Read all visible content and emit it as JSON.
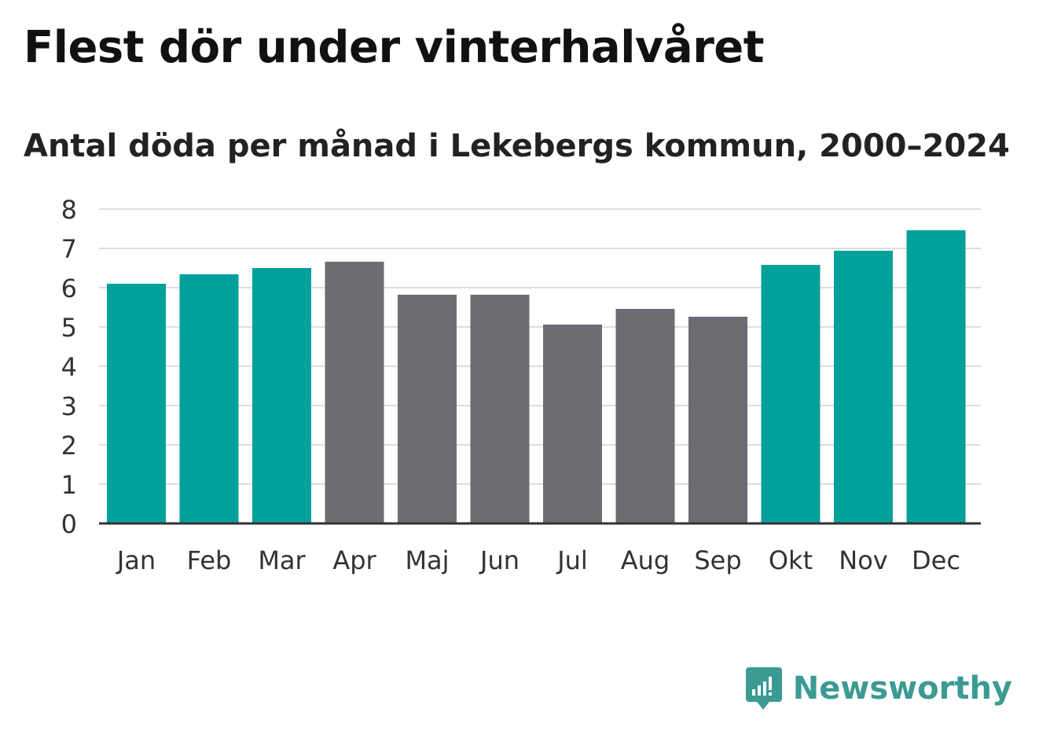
{
  "title": "Flest dör under vinterhalvåret",
  "subtitle": "Antal döda per månad i Lekebergs kommun, 2000–2024",
  "brand": {
    "name": "Newsworthy",
    "icon": "newsworthy-logo-icon",
    "color": "#3b9b93"
  },
  "colors": {
    "highlight": "#00a19a",
    "muted": "#6d6c72",
    "grid": "#dddddd",
    "axis": "#333333"
  },
  "chart_data": {
    "type": "bar",
    "title": "Flest dör under vinterhalvåret",
    "subtitle": "Antal döda per månad i Lekebergs kommun, 2000–2024",
    "xlabel": "",
    "ylabel": "",
    "ylim": [
      0,
      8
    ],
    "yticks": [
      0,
      1,
      2,
      3,
      4,
      5,
      6,
      7,
      8
    ],
    "grid": true,
    "categories": [
      "Jan",
      "Feb",
      "Mar",
      "Apr",
      "Maj",
      "Jun",
      "Jul",
      "Aug",
      "Sep",
      "Okt",
      "Nov",
      "Dec"
    ],
    "values": [
      6.1,
      6.34,
      6.5,
      6.66,
      5.82,
      5.82,
      5.06,
      5.46,
      5.26,
      6.58,
      6.94,
      7.46
    ],
    "highlighted": [
      true,
      true,
      true,
      false,
      false,
      false,
      false,
      false,
      false,
      true,
      true,
      true
    ]
  }
}
